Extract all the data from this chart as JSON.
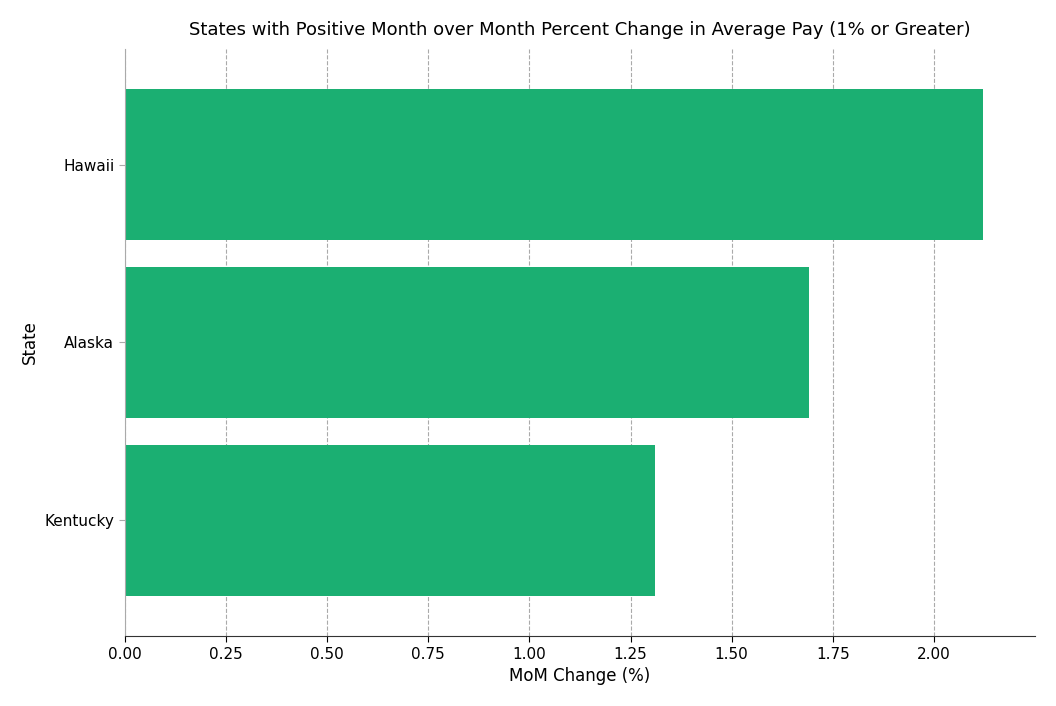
{
  "title": "States with Positive Month over Month Percent Change in Average Pay (1% or Greater)",
  "categories": [
    "Kentucky",
    "Alaska",
    "Hawaii"
  ],
  "values": [
    1.31,
    1.69,
    2.12
  ],
  "bar_color": "#1BAF72",
  "xlabel": "MoM Change (%)",
  "ylabel": "State",
  "xlim": [
    0,
    2.25
  ],
  "xticks": [
    0.0,
    0.25,
    0.5,
    0.75,
    1.0,
    1.25,
    1.5,
    1.75,
    2.0
  ],
  "xtick_labels": [
    "0.00",
    "0.25",
    "0.50",
    "0.75",
    "1.00",
    "1.25",
    "1.50",
    "1.75",
    "2.00"
  ],
  "background_color": "#ffffff",
  "grid_color": "#aaaaaa",
  "title_fontsize": 13,
  "label_fontsize": 12,
  "tick_fontsize": 11,
  "bar_height": 0.85
}
